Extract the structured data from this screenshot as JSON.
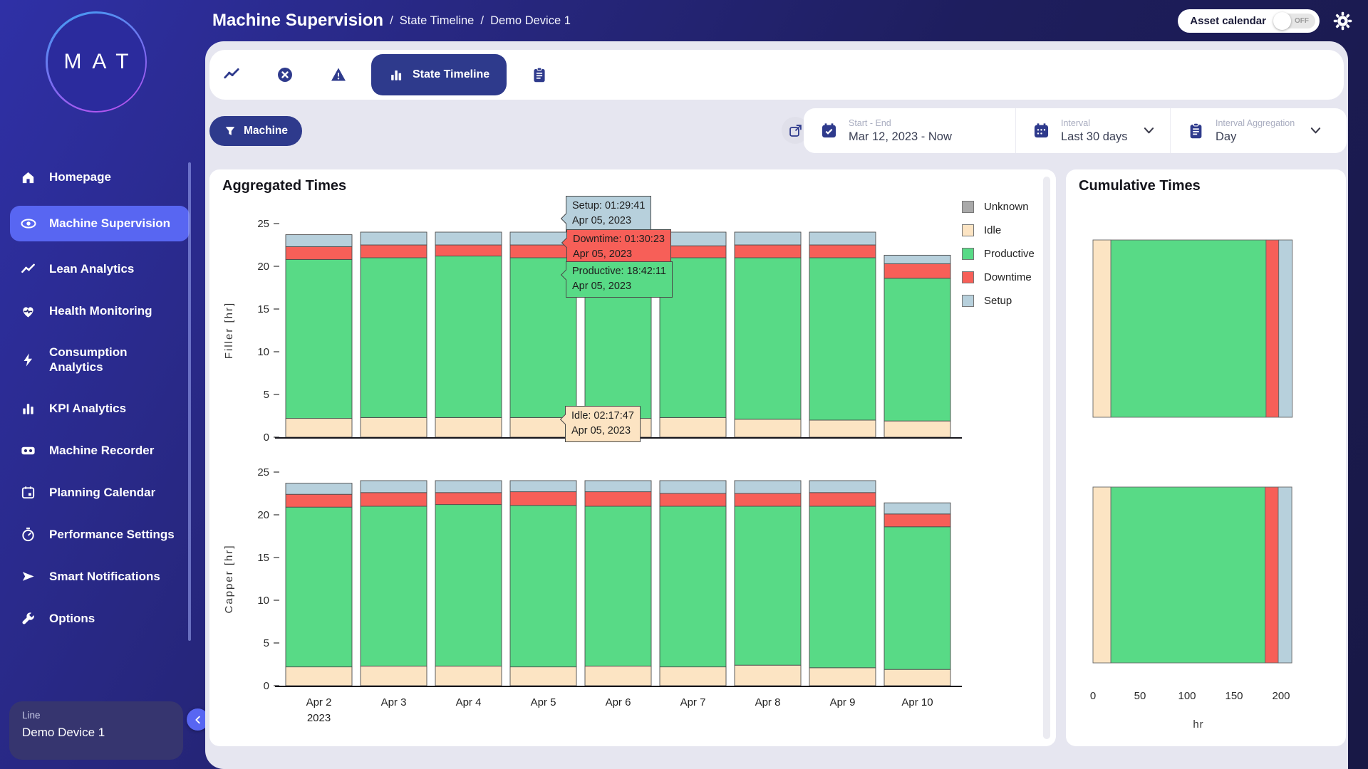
{
  "logo": {
    "text": "MAT"
  },
  "header": {
    "title": "Machine Supervision",
    "separator": "/",
    "breadcrumbs": [
      "State Timeline",
      "Demo Device 1"
    ],
    "asset_calendar": {
      "label": "Asset calendar",
      "toggle_state": "OFF"
    }
  },
  "sidebar": {
    "items": [
      {
        "label": "Homepage",
        "icon": "home"
      },
      {
        "label": "Machine Supervision",
        "icon": "eye",
        "active": true
      },
      {
        "label": "Lean Analytics",
        "icon": "trend"
      },
      {
        "label": "Health Monitoring",
        "icon": "heart"
      },
      {
        "label": "Consumption Analytics",
        "icon": "bolt"
      },
      {
        "label": "KPI Analytics",
        "icon": "kpi-bars"
      },
      {
        "label": "Machine Recorder",
        "icon": "recorder"
      },
      {
        "label": "Planning Calendar",
        "icon": "calendar"
      },
      {
        "label": "Performance Settings",
        "icon": "gauge"
      },
      {
        "label": "Smart Notifications",
        "icon": "send"
      },
      {
        "label": "Options",
        "icon": "wrench"
      }
    ],
    "device_card": {
      "label": "Line",
      "value": "Demo Device 1"
    }
  },
  "tabbar": {
    "active_tab_label": "State Timeline"
  },
  "filters": {
    "machine_button": "Machine",
    "start_end": {
      "label": "Start - End",
      "value": "Mar 12, 2023 - Now"
    },
    "interval": {
      "label": "Interval",
      "value": "Last 30 days"
    },
    "aggregation": {
      "label": "Interval Aggregation",
      "value": "Day"
    }
  },
  "aggregated": {
    "title": "Aggregated Times",
    "legend": [
      {
        "key": "unknown",
        "label": "Unknown",
        "color": "#a9a9a9"
      },
      {
        "key": "idle",
        "label": "Idle",
        "color": "#fce4c3"
      },
      {
        "key": "productive",
        "label": "Productive",
        "color": "#58da86"
      },
      {
        "key": "downtime",
        "label": "Downtime",
        "color": "#f75f58"
      },
      {
        "key": "setup",
        "label": "Setup",
        "color": "#b7d0dc"
      }
    ],
    "tooltips": [
      {
        "key": "setup",
        "line1": "Setup: 01:29:41",
        "line2": "Apr 05, 2023"
      },
      {
        "key": "downtime",
        "line1": "Downtime: 01:30:23",
        "line2": "Apr 05, 2023"
      },
      {
        "key": "productive",
        "line1": "Productive: 18:42:11",
        "line2": "Apr 05, 2023"
      },
      {
        "key": "idle",
        "line1": "Idle: 02:17:47",
        "line2": "Apr 05, 2023"
      }
    ]
  },
  "cumulative": {
    "title": "Cumulative Times",
    "xlabel": "hr"
  },
  "chart_data": [
    {
      "type": "bar",
      "stacked": true,
      "orientation": "vertical",
      "id": "filler",
      "ylabel": "Filler [hr]",
      "ylim": [
        0,
        25
      ],
      "yticks": [
        0,
        5,
        10,
        15,
        20,
        25
      ],
      "grid": false,
      "show_x_labels": false,
      "categories": [
        "Apr 2",
        "Apr 3",
        "Apr 4",
        "Apr 5",
        "Apr 6",
        "Apr 7",
        "Apr 8",
        "Apr 9",
        "Apr 10"
      ],
      "categories_year": [
        "2023",
        "",
        "",
        "",
        "",
        "",
        "",
        "",
        ""
      ],
      "series": [
        {
          "name": "Idle",
          "key": "idle",
          "values": [
            2.2,
            2.3,
            2.3,
            2.3,
            2.2,
            2.3,
            2.1,
            2.0,
            1.9
          ]
        },
        {
          "name": "Productive",
          "key": "productive",
          "values": [
            18.6,
            18.7,
            18.9,
            18.7,
            18.8,
            18.7,
            18.9,
            19.0,
            16.7
          ]
        },
        {
          "name": "Downtime",
          "key": "downtime",
          "values": [
            1.5,
            1.5,
            1.3,
            1.5,
            1.5,
            1.4,
            1.5,
            1.5,
            1.7
          ]
        },
        {
          "name": "Setup",
          "key": "setup",
          "values": [
            1.4,
            1.5,
            1.5,
            1.5,
            1.5,
            1.6,
            1.5,
            1.5,
            1.0
          ]
        }
      ]
    },
    {
      "type": "bar",
      "stacked": true,
      "orientation": "vertical",
      "id": "capper",
      "ylabel": "Capper [hr]",
      "ylim": [
        0,
        25
      ],
      "yticks": [
        0,
        5,
        10,
        15,
        20,
        25
      ],
      "grid": false,
      "show_x_labels": true,
      "categories": [
        "Apr 2",
        "Apr 3",
        "Apr 4",
        "Apr 5",
        "Apr 6",
        "Apr 7",
        "Apr 8",
        "Apr 9",
        "Apr 10"
      ],
      "categories_year": [
        "2023",
        "",
        "",
        "",
        "",
        "",
        "",
        "",
        ""
      ],
      "series": [
        {
          "name": "Idle",
          "key": "idle",
          "values": [
            2.2,
            2.3,
            2.3,
            2.2,
            2.3,
            2.2,
            2.4,
            2.1,
            1.9
          ]
        },
        {
          "name": "Productive",
          "key": "productive",
          "values": [
            18.7,
            18.7,
            18.9,
            18.9,
            18.7,
            18.8,
            18.6,
            18.9,
            16.7
          ]
        },
        {
          "name": "Downtime",
          "key": "downtime",
          "values": [
            1.5,
            1.6,
            1.4,
            1.6,
            1.7,
            1.5,
            1.5,
            1.6,
            1.5
          ]
        },
        {
          "name": "Setup",
          "key": "setup",
          "values": [
            1.3,
            1.4,
            1.4,
            1.3,
            1.3,
            1.5,
            1.5,
            1.4,
            1.3
          ]
        }
      ]
    },
    {
      "type": "bar",
      "stacked": true,
      "orientation": "horizontal",
      "id": "cumulative",
      "xlabel": "hr",
      "xlim": [
        0,
        215
      ],
      "xticks": [
        0,
        50,
        100,
        150,
        200
      ],
      "rows": [
        {
          "name": "Filler",
          "segments": {
            "idle": 19,
            "productive": 165,
            "downtime": 13.5,
            "setup": 14.5
          }
        },
        {
          "name": "Capper",
          "segments": {
            "idle": 19,
            "productive": 164,
            "downtime": 14,
            "setup": 14.5
          }
        }
      ]
    }
  ]
}
